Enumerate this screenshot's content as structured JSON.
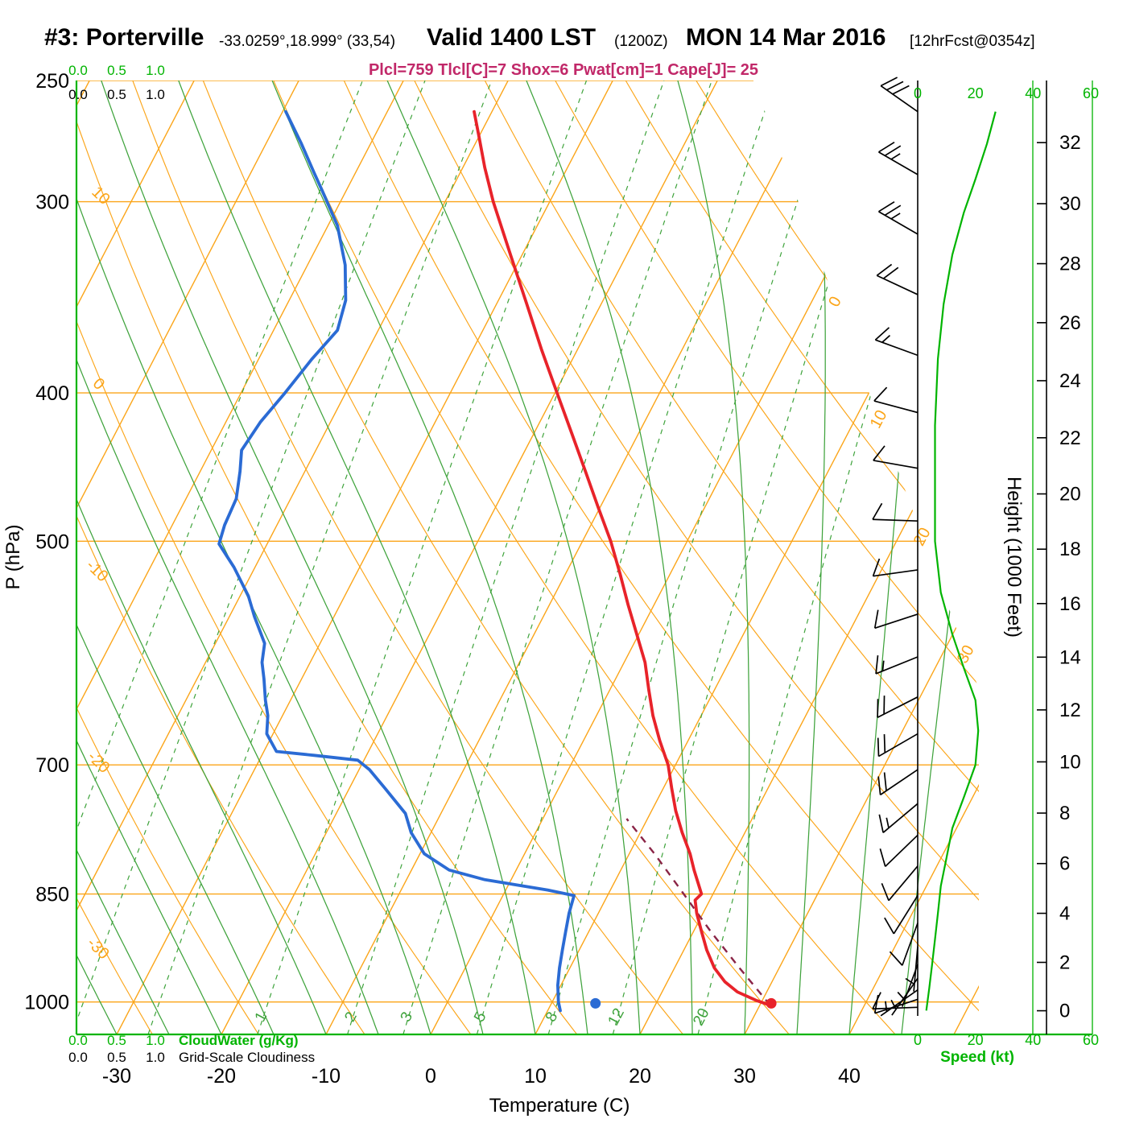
{
  "header": {
    "station": "#3: Porterville",
    "coords": "-33.0259°,18.999° (33,54)",
    "valid": "Valid 1400 LST",
    "valid_z": "(1200Z)",
    "date": "MON 14 Mar 2016",
    "forecast": "[12hrFcst@0354z]",
    "indices": "Plcl=759 Tlcl[C]=7 Shox=6 Pwat[cm]=1 Cape[J]= 25"
  },
  "axes": {
    "pressure_label": "P (hPa)",
    "pressure_ticks": [
      250,
      300,
      400,
      500,
      700,
      850,
      1000
    ],
    "temperature_label": "Temperature (C)",
    "temperature_ticks": [
      -30,
      -20,
      -10,
      0,
      10,
      20,
      30,
      40
    ],
    "height_label": "Height (1000 Feet)",
    "height_ticks": [
      0,
      2,
      4,
      6,
      8,
      10,
      12,
      14,
      16,
      18,
      20,
      22,
      24,
      26,
      28,
      30,
      32
    ],
    "speed_label": "Speed (kt)",
    "speed_ticks": [
      0,
      20,
      40,
      60
    ],
    "cloudwater_label": "CloudWater (g/Kg)",
    "cloudwater_ticks": [
      "0.0",
      "0.5",
      "1.0"
    ],
    "cloudiness_label": "Grid-Scale Cloudiness",
    "cloudiness_ticks": [
      "0.0",
      "0.5",
      "1.0"
    ],
    "dry_adiabat_labels": [
      10,
      0,
      -10,
      -20,
      -30
    ],
    "isotherm_labels": [
      0,
      10,
      20,
      30
    ],
    "mixing_ratio_labels": [
      1,
      2,
      3,
      5,
      8,
      12,
      20
    ]
  },
  "chart_data": {
    "type": "line",
    "subtype": "skew-t-log-p-sounding",
    "title": "#3: Porterville Valid 1400 LST (1200Z) MON 14 Mar 2016 [12hrFcst@0354z]",
    "pressure_range_hpa": [
      1050,
      250
    ],
    "temperature_axis_c": [
      -30,
      40
    ],
    "surface_temperature_c": 31,
    "surface_dewpoint_c": 14,
    "indices": {
      "Plcl_hPa": 759,
      "Tlcl_C": 7,
      "Showalter": 6,
      "Pwat_cm": 1,
      "Cape_J": 25
    },
    "sounding": {
      "temperature_p_t": [
        [
          1005,
          31.0
        ],
        [
          998,
          29.5
        ],
        [
          985,
          27.2
        ],
        [
          970,
          25.5
        ],
        [
          950,
          23.8
        ],
        [
          925,
          22.2
        ],
        [
          900,
          20.8
        ],
        [
          875,
          19.4
        ],
        [
          858,
          18.6
        ],
        [
          850,
          18.9
        ],
        [
          842,
          18.4
        ],
        [
          820,
          17.0
        ],
        [
          800,
          15.8
        ],
        [
          775,
          14.0
        ],
        [
          750,
          12.3
        ],
        [
          725,
          10.8
        ],
        [
          700,
          9.3
        ],
        [
          675,
          7.3
        ],
        [
          650,
          5.4
        ],
        [
          625,
          3.7
        ],
        [
          600,
          2.0
        ],
        [
          575,
          -0.2
        ],
        [
          550,
          -2.5
        ],
        [
          525,
          -4.8
        ],
        [
          500,
          -7.3
        ],
        [
          475,
          -10.2
        ],
        [
          450,
          -13.2
        ],
        [
          425,
          -16.4
        ],
        [
          400,
          -19.8
        ],
        [
          375,
          -23.4
        ],
        [
          350,
          -27.1
        ],
        [
          325,
          -31.1
        ],
        [
          300,
          -35.4
        ],
        [
          285,
          -37.9
        ],
        [
          272,
          -40.0
        ],
        [
          262,
          -41.7
        ]
      ],
      "dewpoint_p_t": [
        [
          1013,
          11.2
        ],
        [
          1000,
          10.6
        ],
        [
          975,
          9.7
        ],
        [
          950,
          9.0
        ],
        [
          925,
          8.4
        ],
        [
          900,
          7.8
        ],
        [
          875,
          7.2
        ],
        [
          852,
          6.8
        ],
        [
          845,
          4.0
        ],
        [
          832,
          -2.5
        ],
        [
          820,
          -6.4
        ],
        [
          800,
          -9.6
        ],
        [
          775,
          -11.9
        ],
        [
          753,
          -13.4
        ],
        [
          725,
          -16.6
        ],
        [
          705,
          -19.0
        ],
        [
          695,
          -20.6
        ],
        [
          690,
          -25.0
        ],
        [
          686,
          -28.8
        ],
        [
          668,
          -30.6
        ],
        [
          650,
          -31.4
        ],
        [
          635,
          -32.4
        ],
        [
          615,
          -33.6
        ],
        [
          600,
          -34.6
        ],
        [
          583,
          -35.3
        ],
        [
          560,
          -37.6
        ],
        [
          543,
          -39.2
        ],
        [
          520,
          -42.0
        ],
        [
          502,
          -44.6
        ],
        [
          488,
          -45.0
        ],
        [
          469,
          -45.2
        ],
        [
          450,
          -46.2
        ],
        [
          436,
          -47.1
        ],
        [
          418,
          -46.7
        ],
        [
          400,
          -45.8
        ],
        [
          380,
          -44.9
        ],
        [
          364,
          -43.9
        ],
        [
          348,
          -44.6
        ],
        [
          330,
          -46.4
        ],
        [
          311,
          -49.1
        ],
        [
          295,
          -52.3
        ],
        [
          287,
          -54.0
        ],
        [
          275,
          -56.6
        ],
        [
          262,
          -59.7
        ]
      ],
      "parcel_p_t": [
        [
          1005,
          31.0
        ],
        [
          950,
          26.2
        ],
        [
          900,
          21.7
        ],
        [
          850,
          17.2
        ],
        [
          800,
          12.4
        ],
        [
          759,
          8.0
        ]
      ],
      "surface_dots": {
        "temperature": [
          1002,
          31.0
        ],
        "dewpoint": [
          1002,
          14.2
        ]
      },
      "wind_barbs_p_dir_kt": [
        [
          262,
          305,
          30
        ],
        [
          288,
          300,
          25
        ],
        [
          315,
          300,
          25
        ],
        [
          345,
          295,
          20
        ],
        [
          378,
          290,
          15
        ],
        [
          412,
          285,
          10
        ],
        [
          448,
          280,
          10
        ],
        [
          485,
          272,
          10
        ],
        [
          522,
          262,
          10
        ],
        [
          558,
          252,
          10
        ],
        [
          595,
          248,
          15
        ],
        [
          632,
          243,
          20
        ],
        [
          668,
          240,
          20
        ],
        [
          705,
          236,
          20
        ],
        [
          742,
          230,
          15
        ],
        [
          778,
          226,
          10
        ],
        [
          815,
          220,
          10
        ],
        [
          852,
          212,
          10
        ],
        [
          888,
          200,
          10
        ],
        [
          920,
          185,
          5
        ],
        [
          945,
          200,
          5
        ],
        [
          965,
          215,
          8
        ],
        [
          982,
          235,
          8
        ],
        [
          996,
          252,
          10
        ],
        [
          1008,
          268,
          10
        ]
      ],
      "wind_speed_profile_p_kt": [
        [
          262,
          27
        ],
        [
          275,
          24
        ],
        [
          290,
          20
        ],
        [
          305,
          16
        ],
        [
          325,
          12
        ],
        [
          350,
          9
        ],
        [
          380,
          7
        ],
        [
          420,
          6
        ],
        [
          460,
          6
        ],
        [
          500,
          6
        ],
        [
          540,
          8
        ],
        [
          575,
          12
        ],
        [
          605,
          16
        ],
        [
          635,
          20
        ],
        [
          665,
          21
        ],
        [
          700,
          20
        ],
        [
          735,
          16
        ],
        [
          770,
          12
        ],
        [
          805,
          10
        ],
        [
          840,
          8
        ],
        [
          875,
          7
        ],
        [
          910,
          6
        ],
        [
          945,
          5
        ],
        [
          980,
          4
        ],
        [
          1013,
          3
        ]
      ]
    },
    "legend_position": "none",
    "grid": true
  },
  "colors": {
    "grid_orange": "#FBA519",
    "grid_green": "#3FA33C",
    "axis_green": "#00B400",
    "temperature_red": "#E8232A",
    "dewpoint_blue": "#2B6BD4",
    "parcel_maroon": "#8A2446",
    "indices_magenta": "#C12869",
    "black": "#000000"
  }
}
